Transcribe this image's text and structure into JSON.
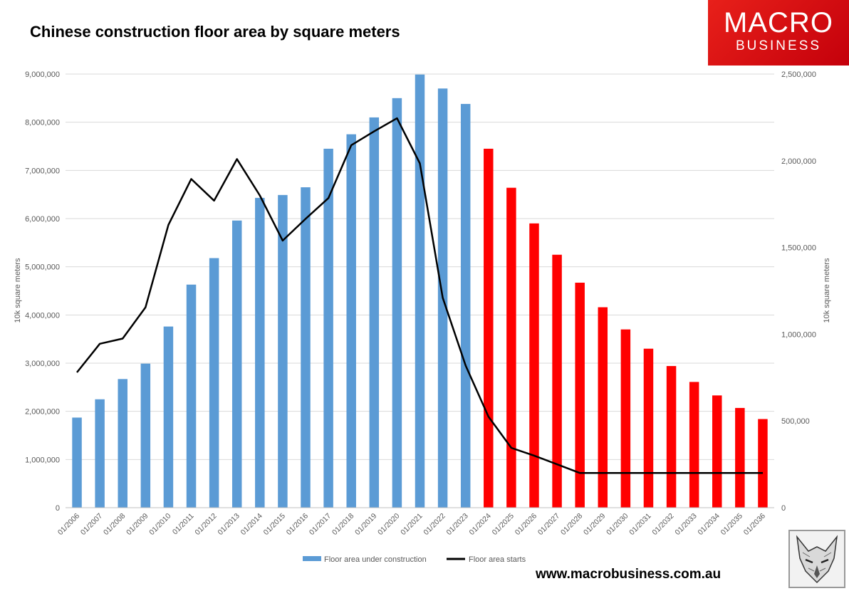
{
  "title": "Chinese construction floor area by square meters",
  "logo": {
    "line1": "MACRO",
    "line2": "BUSINESS"
  },
  "website": "www.macrobusiness.com.au",
  "colors": {
    "actual_bar": "#5b9bd5",
    "forecast_bar": "#ff0000",
    "line": "#000000",
    "grid": "#d9d9d9"
  },
  "chart_data": {
    "type": "bar+line",
    "categories": [
      "01/2006",
      "01/2007",
      "01/2008",
      "01/2009",
      "01/2010",
      "01/2011",
      "01/2012",
      "01/2013",
      "01/2014",
      "01/2015",
      "01/2016",
      "01/2017",
      "01/2018",
      "01/2019",
      "01/2020",
      "01/2021",
      "01/2022",
      "01/2023",
      "01/2024",
      "01/2025",
      "01/2026",
      "01/2027",
      "01/2028",
      "01/2029",
      "01/2030",
      "01/2031",
      "01/2032",
      "01/2033",
      "01/2034",
      "01/2035",
      "01/2036"
    ],
    "series": [
      {
        "name": "Floor area under construction",
        "type": "bar",
        "axis": "left",
        "values": [
          1870000,
          2250000,
          2670000,
          2990000,
          3760000,
          4630000,
          5180000,
          5960000,
          6430000,
          6490000,
          6650000,
          7450000,
          7750000,
          8100000,
          8500000,
          8990000,
          8700000,
          8380000,
          7450000,
          6640000,
          5900000,
          5250000,
          4670000,
          4160000,
          3700000,
          3300000,
          2940000,
          2610000,
          2330000,
          2070000,
          1840000
        ],
        "forecast_from_index": 18
      },
      {
        "name": "Floor area starts",
        "type": "line",
        "axis": "right",
        "values": [
          780000,
          945000,
          975000,
          1155000,
          1630000,
          1895000,
          1770000,
          2010000,
          1800000,
          1540000,
          1665000,
          1785000,
          2090000,
          2170000,
          2245000,
          1985000,
          1210000,
          820000,
          525000,
          345000,
          300000,
          250000,
          200000,
          200000,
          200000,
          200000,
          200000,
          200000,
          200000,
          200000,
          200000
        ]
      }
    ],
    "y_left": {
      "label": "10k square meters",
      "min": 0,
      "max": 9000000,
      "ticks": [
        "0",
        "1,000,000",
        "2,000,000",
        "3,000,000",
        "4,000,000",
        "5,000,000",
        "6,000,000",
        "7,000,000",
        "8,000,000",
        "9,000,000"
      ]
    },
    "y_right": {
      "label": "10k square meters",
      "min": 0,
      "max": 2500000,
      "ticks": [
        "0",
        "500,000",
        "1,000,000",
        "1,500,000",
        "2,000,000",
        "2,500,000"
      ]
    },
    "grid": true,
    "legend_position": "bottom"
  }
}
